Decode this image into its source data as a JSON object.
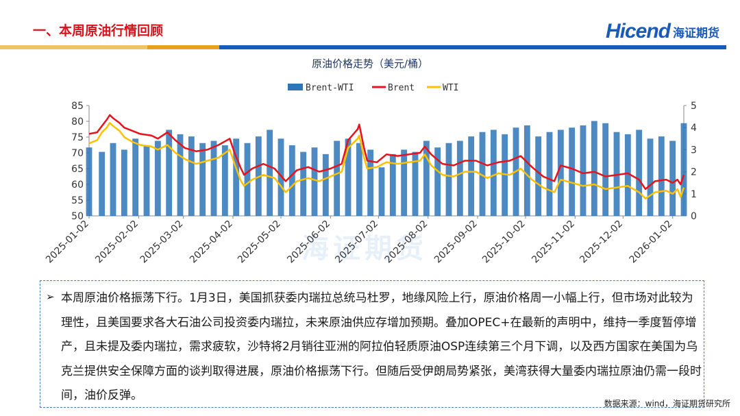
{
  "page": {
    "title": "一、本周原油行情回顾",
    "logo_text": "Hicend",
    "logo_cn": "海证期货",
    "watermark_cn": "海证期货",
    "source": "数据来源：wind，海证期货研究所",
    "bullet_symbol": "➢",
    "paragraph": "本周原油价格振荡下行。1月3日，美国抓获委内瑞拉总统马杜罗，地缘风险上行，原油价格周一小幅上行，但市场对此较为理性，且美国要求各大石油公司投资委内瑞拉，未来原油供应存增加预期。叠加OPEC+在最新的声明中，维持一季度暂停增产，且未提及委内瑞拉，需求疲软，沙特将2月销往亚洲的阿拉伯轻质原油OSP连续第三个月下调，以及西方国家在美国为乌克兰提供安全保障方面的谈判取得进展，原油价格振荡下行。但随后受伊朗局势紧张，美湾获得大量委内瑞拉原油仍需一段时间，油价反弹。",
    "band_colors": [
      "#f2c26b",
      "#e6a21a",
      "#1b5bb8",
      "#1b5bb8"
    ]
  },
  "chart_data": {
    "type": "bar+line",
    "title": "原油价格走势（美元/桶）",
    "legend_position": "top-center",
    "left_axis": {
      "ylim": [
        50,
        85
      ],
      "ticks": [
        50,
        55,
        60,
        65,
        70,
        75,
        80,
        85
      ]
    },
    "right_axis": {
      "ylim": [
        0,
        5
      ],
      "ticks": [
        0,
        1,
        2,
        3,
        4,
        5
      ]
    },
    "x_range": [
      "2025-01-02",
      "2026-01-09"
    ],
    "x_ticks": [
      "2025-01-02",
      "2025-02-02",
      "2025-03-02",
      "2025-04-02",
      "2025-05-02",
      "2025-06-02",
      "2025-07-02",
      "2025-08-02",
      "2025-09-02",
      "2025-10-02",
      "2025-11-02",
      "2025-12-02",
      "2026-01-02"
    ],
    "series": [
      {
        "name": "Brent-WTI",
        "kind": "bar",
        "axis": "right",
        "color": "#2e75b6",
        "points": [
          [
            "2025-01-02",
            3.1
          ],
          [
            "2025-01-10",
            2.9
          ],
          [
            "2025-01-17",
            3.3
          ],
          [
            "2025-01-24",
            3.0
          ],
          [
            "2025-01-31",
            3.5
          ],
          [
            "2025-02-07",
            3.2
          ],
          [
            "2025-02-14",
            3.4
          ],
          [
            "2025-02-21",
            3.9
          ],
          [
            "2025-02-28",
            3.7
          ],
          [
            "2025-03-07",
            3.6
          ],
          [
            "2025-03-14",
            3.3
          ],
          [
            "2025-03-21",
            3.4
          ],
          [
            "2025-03-28",
            3.2
          ],
          [
            "2025-04-04",
            3.5
          ],
          [
            "2025-04-11",
            3.3
          ],
          [
            "2025-04-18",
            3.6
          ],
          [
            "2025-04-25",
            3.9
          ],
          [
            "2025-05-02",
            3.5
          ],
          [
            "2025-05-09",
            3.2
          ],
          [
            "2025-05-16",
            2.9
          ],
          [
            "2025-05-23",
            3.1
          ],
          [
            "2025-05-30",
            2.8
          ],
          [
            "2025-06-06",
            3.4
          ],
          [
            "2025-06-13",
            3.5
          ],
          [
            "2025-06-20",
            3.3
          ],
          [
            "2025-06-27",
            3.0
          ],
          [
            "2025-07-04",
            2.2
          ],
          [
            "2025-07-11",
            2.8
          ],
          [
            "2025-07-18",
            3.0
          ],
          [
            "2025-07-25",
            2.9
          ],
          [
            "2025-08-01",
            3.4
          ],
          [
            "2025-08-08",
            3.1
          ],
          [
            "2025-08-15",
            3.3
          ],
          [
            "2025-08-22",
            3.4
          ],
          [
            "2025-08-29",
            3.6
          ],
          [
            "2025-09-05",
            3.8
          ],
          [
            "2025-09-12",
            3.9
          ],
          [
            "2025-09-19",
            3.7
          ],
          [
            "2025-09-26",
            4.0
          ],
          [
            "2025-10-03",
            4.1
          ],
          [
            "2025-10-10",
            3.6
          ],
          [
            "2025-10-17",
            3.8
          ],
          [
            "2025-10-24",
            3.9
          ],
          [
            "2025-10-31",
            4.0
          ],
          [
            "2025-11-07",
            4.1
          ],
          [
            "2025-11-14",
            4.3
          ],
          [
            "2025-11-21",
            4.2
          ],
          [
            "2025-11-28",
            3.8
          ],
          [
            "2025-12-05",
            3.7
          ],
          [
            "2025-12-12",
            3.9
          ],
          [
            "2025-12-19",
            3.5
          ],
          [
            "2025-12-26",
            3.6
          ],
          [
            "2026-01-02",
            3.4
          ],
          [
            "2026-01-09",
            4.2
          ]
        ]
      },
      {
        "name": "Brent",
        "kind": "line",
        "axis": "left",
        "color": "#e8121b",
        "points": [
          [
            "2025-01-02",
            76.0
          ],
          [
            "2025-01-07",
            76.5
          ],
          [
            "2025-01-10",
            78.5
          ],
          [
            "2025-01-13",
            80.5
          ],
          [
            "2025-01-15",
            82.0
          ],
          [
            "2025-01-17",
            81.0
          ],
          [
            "2025-01-21",
            79.5
          ],
          [
            "2025-01-24",
            78.0
          ],
          [
            "2025-01-29",
            77.0
          ],
          [
            "2025-02-03",
            76.0
          ],
          [
            "2025-02-10",
            75.5
          ],
          [
            "2025-02-14",
            74.5
          ],
          [
            "2025-02-20",
            76.5
          ],
          [
            "2025-02-25",
            74.0
          ],
          [
            "2025-03-03",
            71.5
          ],
          [
            "2025-03-10",
            70.5
          ],
          [
            "2025-03-17",
            71.0
          ],
          [
            "2025-03-24",
            72.5
          ],
          [
            "2025-03-31",
            74.5
          ],
          [
            "2025-04-03",
            70.0
          ],
          [
            "2025-04-07",
            65.0
          ],
          [
            "2025-04-09",
            63.0
          ],
          [
            "2025-04-14",
            65.0
          ],
          [
            "2025-04-21",
            66.5
          ],
          [
            "2025-04-28",
            65.0
          ],
          [
            "2025-05-05",
            61.0
          ],
          [
            "2025-05-12",
            64.5
          ],
          [
            "2025-05-19",
            65.5
          ],
          [
            "2025-05-26",
            64.0
          ],
          [
            "2025-06-02",
            65.0
          ],
          [
            "2025-06-09",
            66.5
          ],
          [
            "2025-06-13",
            74.0
          ],
          [
            "2025-06-19",
            77.5
          ],
          [
            "2025-06-20",
            79.0
          ],
          [
            "2025-06-23",
            71.5
          ],
          [
            "2025-06-25",
            67.5
          ],
          [
            "2025-07-01",
            67.0
          ],
          [
            "2025-07-07",
            69.5
          ],
          [
            "2025-07-14",
            69.0
          ],
          [
            "2025-07-21",
            69.5
          ],
          [
            "2025-07-28",
            70.0
          ],
          [
            "2025-07-31",
            72.0
          ],
          [
            "2025-08-04",
            69.5
          ],
          [
            "2025-08-11",
            66.5
          ],
          [
            "2025-08-18",
            66.0
          ],
          [
            "2025-08-25",
            67.5
          ],
          [
            "2025-09-01",
            67.5
          ],
          [
            "2025-09-08",
            66.0
          ],
          [
            "2025-09-15",
            67.0
          ],
          [
            "2025-09-22",
            67.5
          ],
          [
            "2025-09-29",
            69.0
          ],
          [
            "2025-10-06",
            65.5
          ],
          [
            "2025-10-13",
            62.5
          ],
          [
            "2025-10-20",
            61.0
          ],
          [
            "2025-10-24",
            66.0
          ],
          [
            "2025-10-31",
            65.0
          ],
          [
            "2025-11-07",
            63.5
          ],
          [
            "2025-11-14",
            64.0
          ],
          [
            "2025-11-21",
            62.5
          ],
          [
            "2025-11-28",
            63.0
          ],
          [
            "2025-12-05",
            63.5
          ],
          [
            "2025-12-12",
            61.5
          ],
          [
            "2025-12-16",
            58.5
          ],
          [
            "2025-12-22",
            61.0
          ],
          [
            "2025-12-29",
            61.5
          ],
          [
            "2026-01-02",
            60.5
          ],
          [
            "2026-01-05",
            61.5
          ],
          [
            "2026-01-07",
            60.0
          ],
          [
            "2026-01-09",
            63.0
          ]
        ]
      },
      {
        "name": "WTI",
        "kind": "line",
        "axis": "left",
        "color": "#ffc000",
        "points": [
          [
            "2025-01-02",
            73.0
          ],
          [
            "2025-01-07",
            74.0
          ],
          [
            "2025-01-10",
            76.5
          ],
          [
            "2025-01-13",
            78.0
          ],
          [
            "2025-01-15",
            79.5
          ],
          [
            "2025-01-17",
            78.5
          ],
          [
            "2025-01-21",
            77.0
          ],
          [
            "2025-01-24",
            75.0
          ],
          [
            "2025-01-29",
            73.5
          ],
          [
            "2025-02-03",
            72.5
          ],
          [
            "2025-02-10",
            72.0
          ],
          [
            "2025-02-14",
            71.0
          ],
          [
            "2025-02-20",
            72.5
          ],
          [
            "2025-02-25",
            70.0
          ],
          [
            "2025-03-03",
            68.0
          ],
          [
            "2025-03-10",
            66.5
          ],
          [
            "2025-03-17",
            67.5
          ],
          [
            "2025-03-24",
            68.5
          ],
          [
            "2025-03-31",
            71.0
          ],
          [
            "2025-04-03",
            66.5
          ],
          [
            "2025-04-07",
            61.0
          ],
          [
            "2025-04-09",
            59.5
          ],
          [
            "2025-04-14",
            61.5
          ],
          [
            "2025-04-21",
            63.0
          ],
          [
            "2025-04-28",
            62.0
          ],
          [
            "2025-05-05",
            57.5
          ],
          [
            "2025-05-12",
            61.0
          ],
          [
            "2025-05-19",
            62.0
          ],
          [
            "2025-05-26",
            61.0
          ],
          [
            "2025-06-02",
            62.5
          ],
          [
            "2025-06-09",
            64.0
          ],
          [
            "2025-06-13",
            71.5
          ],
          [
            "2025-06-19",
            74.5
          ],
          [
            "2025-06-20",
            75.5
          ],
          [
            "2025-06-23",
            68.5
          ],
          [
            "2025-06-25",
            65.0
          ],
          [
            "2025-07-01",
            65.5
          ],
          [
            "2025-07-07",
            67.0
          ],
          [
            "2025-07-14",
            66.5
          ],
          [
            "2025-07-21",
            67.0
          ],
          [
            "2025-07-28",
            67.5
          ],
          [
            "2025-07-31",
            69.5
          ],
          [
            "2025-08-04",
            66.0
          ],
          [
            "2025-08-11",
            63.0
          ],
          [
            "2025-08-18",
            62.5
          ],
          [
            "2025-08-25",
            64.0
          ],
          [
            "2025-09-01",
            64.0
          ],
          [
            "2025-09-08",
            62.0
          ],
          [
            "2025-09-15",
            63.5
          ],
          [
            "2025-09-22",
            63.0
          ],
          [
            "2025-09-29",
            65.0
          ],
          [
            "2025-10-06",
            61.5
          ],
          [
            "2025-10-13",
            59.0
          ],
          [
            "2025-10-20",
            57.5
          ],
          [
            "2025-10-24",
            61.5
          ],
          [
            "2025-10-31",
            60.5
          ],
          [
            "2025-11-07",
            59.5
          ],
          [
            "2025-11-14",
            60.0
          ],
          [
            "2025-11-21",
            58.5
          ],
          [
            "2025-11-28",
            59.0
          ],
          [
            "2025-12-05",
            59.5
          ],
          [
            "2025-12-12",
            57.5
          ],
          [
            "2025-12-16",
            55.5
          ],
          [
            "2025-12-22",
            57.5
          ],
          [
            "2025-12-29",
            58.0
          ],
          [
            "2026-01-02",
            57.0
          ],
          [
            "2026-01-05",
            58.5
          ],
          [
            "2026-01-07",
            56.0
          ],
          [
            "2026-01-09",
            59.0
          ]
        ]
      }
    ]
  }
}
